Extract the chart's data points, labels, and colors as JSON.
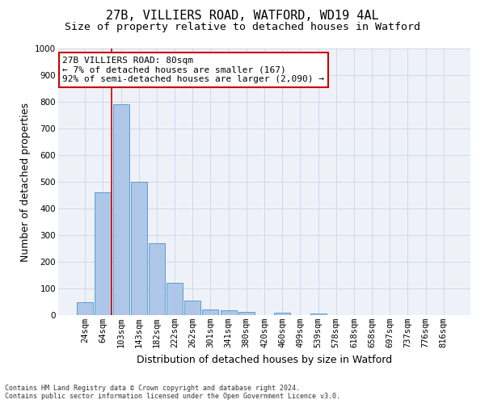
{
  "title_line1": "27B, VILLIERS ROAD, WATFORD, WD19 4AL",
  "title_line2": "Size of property relative to detached houses in Watford",
  "xlabel": "Distribution of detached houses by size in Watford",
  "ylabel": "Number of detached properties",
  "categories": [
    "24sqm",
    "64sqm",
    "103sqm",
    "143sqm",
    "182sqm",
    "222sqm",
    "262sqm",
    "301sqm",
    "341sqm",
    "380sqm",
    "420sqm",
    "460sqm",
    "499sqm",
    "539sqm",
    "578sqm",
    "618sqm",
    "658sqm",
    "697sqm",
    "737sqm",
    "776sqm",
    "816sqm"
  ],
  "values": [
    50,
    460,
    790,
    500,
    270,
    120,
    55,
    20,
    18,
    11,
    0,
    10,
    0,
    5,
    0,
    0,
    0,
    0,
    0,
    0,
    0
  ],
  "bar_color": "#aec6e8",
  "bar_edge_color": "#5a9fd4",
  "grid_color": "#d0d8e8",
  "background_color": "#eef2f8",
  "property_line_color": "#cc0000",
  "property_line_x": 1.48,
  "annotation_text": "27B VILLIERS ROAD: 80sqm\n← 7% of detached houses are smaller (167)\n92% of semi-detached houses are larger (2,090) →",
  "annotation_box_color": "#ffffff",
  "annotation_box_edge_color": "#cc0000",
  "ylim": [
    0,
    1000
  ],
  "yticks": [
    0,
    100,
    200,
    300,
    400,
    500,
    600,
    700,
    800,
    900,
    1000
  ],
  "footnote": "Contains HM Land Registry data © Crown copyright and database right 2024.\nContains public sector information licensed under the Open Government Licence v3.0.",
  "title_fontsize": 11,
  "subtitle_fontsize": 9.5,
  "axis_label_fontsize": 9,
  "tick_fontsize": 7.5,
  "annotation_fontsize": 8,
  "footnote_fontsize": 6
}
